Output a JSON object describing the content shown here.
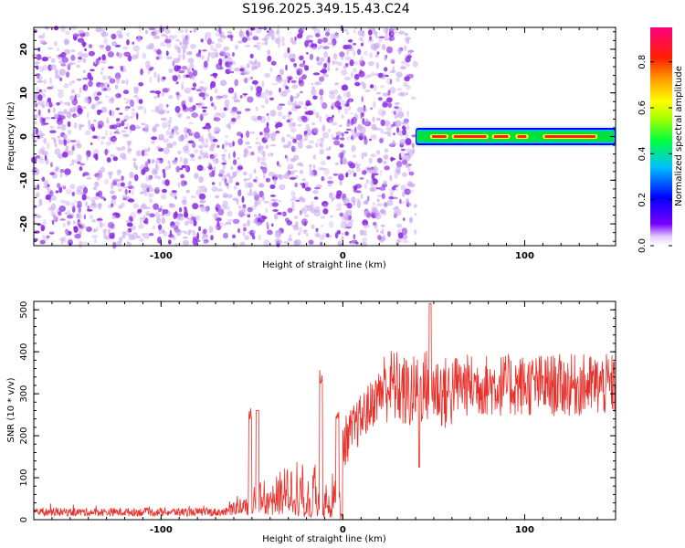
{
  "title": "S196.2025.349.15.43.C24",
  "colors": {
    "signal_line": "#e8302a",
    "scatter_dot": "#8a2be2",
    "scatter_light": "#c9a8f0",
    "band_core": "#ff2020",
    "band_mid": "#ffff00",
    "band_outer": "#00e040",
    "band_edge": "#0000ff"
  },
  "chart_data": [
    {
      "type": "heatmap",
      "name": "spectrogram",
      "title": "S196.2025.349.15.43.C24",
      "xlabel": "Height of straight line (km)",
      "ylabel": "Frequency (Hz)",
      "xlim": [
        -170,
        150
      ],
      "ylim": [
        -25,
        25
      ],
      "xticks": [
        -100,
        0,
        100
      ],
      "yticks": [
        -20,
        -10,
        0,
        10,
        20
      ],
      "noise_region": {
        "x_range": [
          -170,
          40
        ],
        "y_range": [
          -25,
          25
        ],
        "normalized_amplitude_range": [
          0.0,
          0.15
        ]
      },
      "signal_band": {
        "x_range": [
          40,
          150
        ],
        "center_freq": 0,
        "half_width": 2,
        "peak_normalized_amplitude": 0.95
      },
      "colorbar": {
        "label": "Normalized spectral amplitude",
        "range": [
          0.0,
          0.95
        ],
        "ticks": [
          0.0,
          0.2,
          0.4,
          0.6,
          0.8
        ]
      }
    },
    {
      "type": "line",
      "name": "snr",
      "xlabel": "Height of straight line (km)",
      "ylabel": "SNR (10 * v/v)",
      "xlim": [
        -170,
        150
      ],
      "ylim": [
        0,
        520
      ],
      "xticks": [
        -100,
        0,
        100
      ],
      "yticks": [
        0,
        100,
        200,
        300,
        400,
        500
      ],
      "segments": [
        {
          "x_range": [
            -170,
            -63
          ],
          "base": 8,
          "amplitude": 25,
          "note": "noise floor"
        },
        {
          "x_range": [
            -63,
            -25
          ],
          "base": 20,
          "amplitude": 260,
          "note": "rising bursts"
        },
        {
          "x_range": [
            -25,
            0
          ],
          "base": 10,
          "amplitude": 350,
          "note": "intermittent bursts"
        },
        {
          "x_range": [
            0,
            20
          ],
          "base": 200,
          "amplitude": 180,
          "note": "ramp up"
        },
        {
          "x_range": [
            20,
            60
          ],
          "base": 300,
          "amplitude": 230,
          "note": "peak region, max 520 near x=48"
        },
        {
          "x_range": [
            60,
            150
          ],
          "base": 280,
          "amplitude": 130,
          "note": "plateau"
        }
      ]
    }
  ]
}
